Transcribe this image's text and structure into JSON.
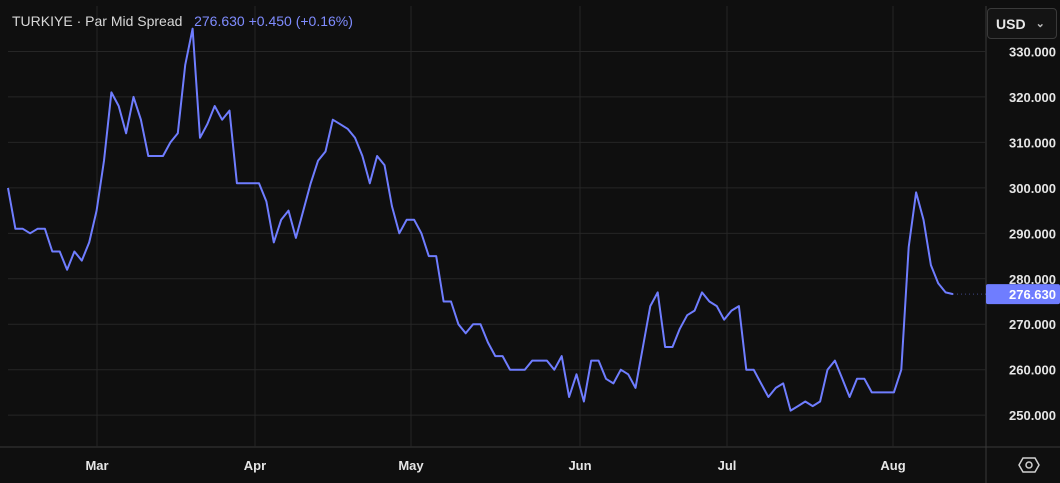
{
  "header": {
    "symbol": "TURKIYE",
    "separator": "·",
    "series_name": "Par Mid Spread",
    "last_value": "276.630",
    "change": "+0.450",
    "change_pct": "(+0.16%)"
  },
  "currency_button": {
    "label": "USD",
    "chevron": "⌄"
  },
  "colors": {
    "line": "#6f7dff",
    "background": "#0f0f0f",
    "grid": "#262626",
    "tag": "#6f7dff"
  },
  "chart_data": {
    "type": "line",
    "title": "",
    "xlabel": "",
    "ylabel": "",
    "x_tick_labels": [
      "Mar",
      "Apr",
      "May",
      "Jun",
      "Jul",
      "Aug"
    ],
    "y_tick_labels": [
      "250.000",
      "260.000",
      "270.000",
      "280.000",
      "290.000",
      "300.000",
      "310.000",
      "320.000",
      "330.000"
    ],
    "ylim": [
      243,
      340
    ],
    "grid": true,
    "last_value_label": "276.630",
    "series": [
      {
        "values": [
          300,
          291,
          291,
          290,
          291,
          291,
          286,
          286,
          282,
          286,
          284,
          288,
          295,
          306,
          321,
          318,
          312,
          320,
          315,
          307,
          307,
          307,
          310,
          312,
          327,
          335,
          311,
          314,
          318,
          315,
          317,
          301,
          301,
          301,
          301,
          297,
          288,
          293,
          295,
          289,
          295,
          301,
          306,
          308,
          315,
          314,
          313,
          311,
          307,
          301,
          307,
          305,
          296,
          290,
          293,
          293,
          290,
          285,
          285,
          275,
          275,
          270,
          268,
          270,
          270,
          266,
          263,
          263,
          260,
          260,
          260,
          262,
          262,
          262,
          260,
          263,
          254,
          259,
          253,
          262,
          262,
          258,
          257,
          260,
          259,
          256,
          265,
          274,
          277,
          265,
          265,
          269,
          272,
          273,
          277,
          275,
          274,
          271,
          273,
          274,
          260,
          260,
          257,
          254,
          256,
          257,
          251,
          252,
          253,
          252,
          253,
          260,
          262,
          258,
          254,
          258,
          258,
          255,
          255,
          255,
          255,
          260,
          287,
          299,
          293,
          283,
          279,
          277,
          276.63
        ]
      }
    ]
  }
}
